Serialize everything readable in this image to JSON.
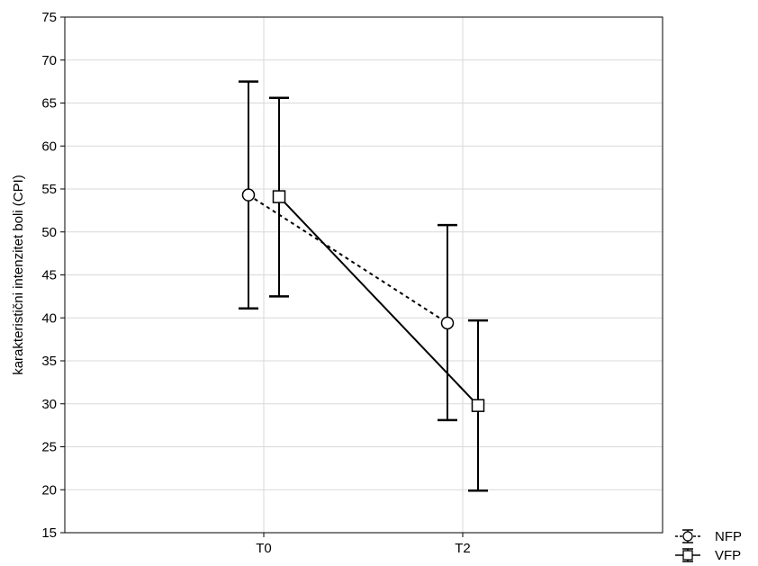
{
  "chart_data": {
    "type": "line",
    "xlabel": "",
    "ylabel": "karakteristični intenzitet boli (CPI)",
    "categories": [
      "T0",
      "T2"
    ],
    "ylim": [
      15,
      75
    ],
    "yticks": [
      15,
      20,
      25,
      30,
      35,
      40,
      45,
      50,
      55,
      60,
      65,
      70,
      75
    ],
    "grid": true,
    "legend": "bottom-right",
    "series": [
      {
        "name": "NFP",
        "marker": "circle",
        "line_style": "dotted",
        "values": [
          54.3,
          39.4
        ],
        "error_low": [
          41.1,
          28.1
        ],
        "error_high": [
          67.5,
          50.8
        ]
      },
      {
        "name": "VFP",
        "marker": "square",
        "line_style": "solid",
        "values": [
          54.1,
          29.8
        ],
        "error_low": [
          42.5,
          19.9
        ],
        "error_high": [
          65.6,
          39.7
        ]
      }
    ]
  }
}
